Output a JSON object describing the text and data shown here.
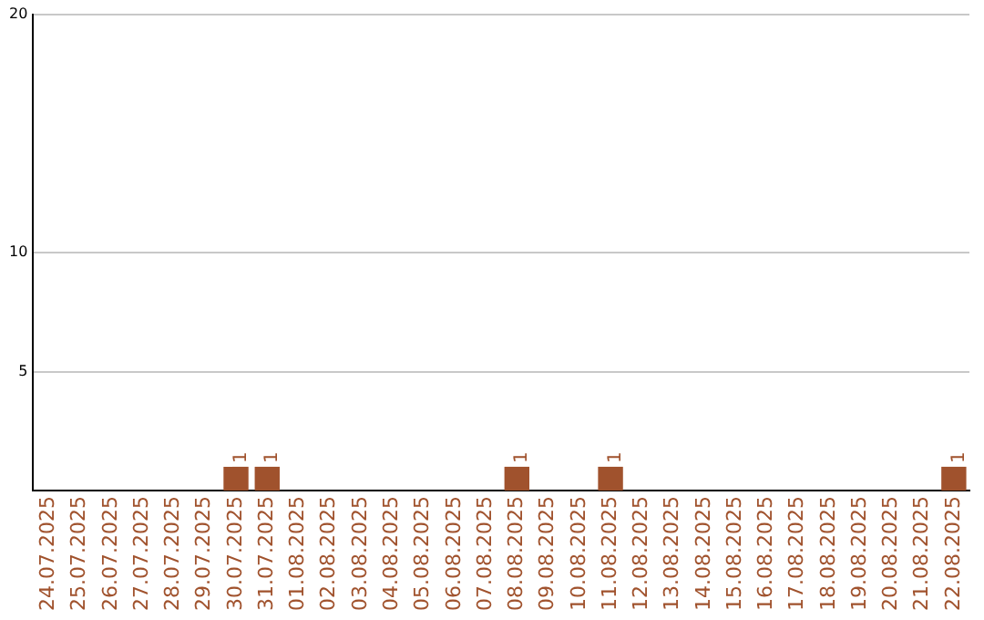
{
  "chart_data": {
    "type": "bar",
    "categories": [
      "24.07.2025",
      "25.07.2025",
      "26.07.2025",
      "27.07.2025",
      "28.07.2025",
      "29.07.2025",
      "30.07.2025",
      "31.07.2025",
      "01.08.2025",
      "02.08.2025",
      "03.08.2025",
      "04.08.2025",
      "05.08.2025",
      "06.08.2025",
      "07.08.2025",
      "08.08.2025",
      "09.08.2025",
      "10.08.2025",
      "11.08.2025",
      "12.08.2025",
      "13.08.2025",
      "14.08.2025",
      "15.08.2025",
      "16.08.2025",
      "17.08.2025",
      "18.08.2025",
      "19.08.2025",
      "20.08.2025",
      "21.08.2025",
      "22.08.2025"
    ],
    "values": [
      0,
      0,
      0,
      0,
      0,
      0,
      1,
      1,
      0,
      0,
      0,
      0,
      0,
      0,
      0,
      1,
      0,
      0,
      1,
      0,
      0,
      0,
      0,
      0,
      0,
      0,
      0,
      0,
      0,
      1
    ],
    "value_labels": [
      null,
      null,
      null,
      null,
      null,
      null,
      "1",
      "1",
      null,
      null,
      null,
      null,
      null,
      null,
      null,
      "1",
      null,
      null,
      "1",
      null,
      null,
      null,
      null,
      null,
      null,
      null,
      null,
      null,
      null,
      "1"
    ],
    "color": "#a0522d",
    "ylim": [
      0,
      20
    ],
    "yticks": [
      5,
      10,
      20
    ],
    "grid": "y",
    "legend": false
  }
}
